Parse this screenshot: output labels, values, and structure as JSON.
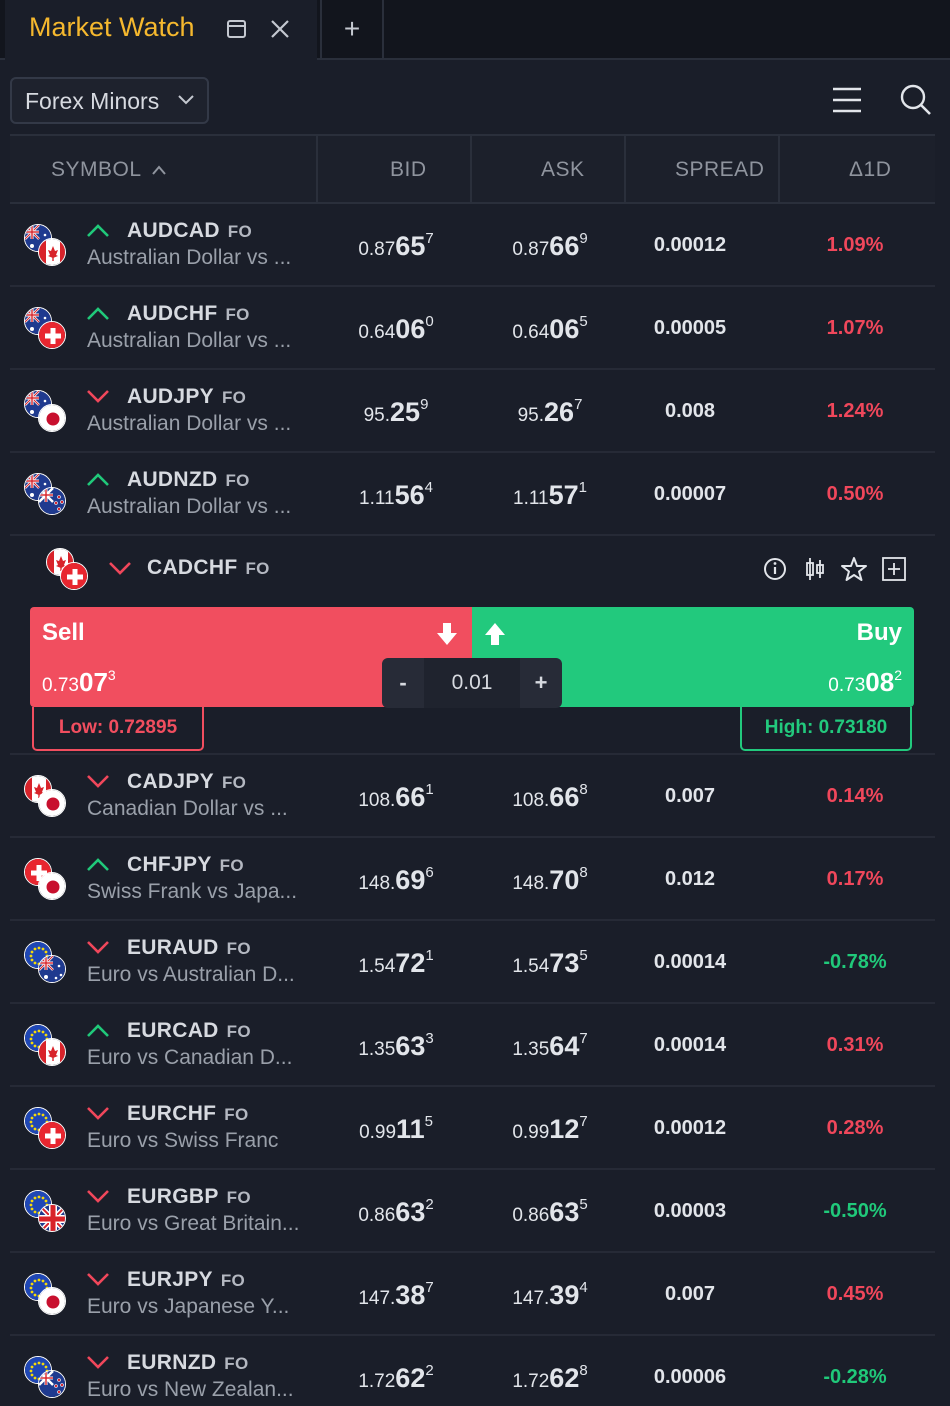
{
  "tab": {
    "title": "Market Watch",
    "add_label": "+"
  },
  "toolbar": {
    "list_name": "Forex Minors"
  },
  "columns": {
    "symbol": "SYMBOL",
    "bid": "BID",
    "ask": "ASK",
    "spread": "SPREAD",
    "change": "Δ1D"
  },
  "colors": {
    "accent": "#f5b82e",
    "sell": "#f14e5f",
    "buy": "#22c97d",
    "negative": "#f0475b",
    "positive": "#20c97a"
  },
  "rows_top": [
    {
      "symbol": "AUDCAD",
      "tag": "FO",
      "desc": "Australian Dollar vs ...",
      "trend": "up",
      "flags": [
        "au",
        "ca"
      ],
      "bid": {
        "pre": "0.87",
        "big": "65",
        "sup": "7"
      },
      "ask": {
        "pre": "0.87",
        "big": "66",
        "sup": "9"
      },
      "spread": "0.00012",
      "change": "1.09%",
      "change_sign": "neg"
    },
    {
      "symbol": "AUDCHF",
      "tag": "FO",
      "desc": "Australian Dollar vs ...",
      "trend": "up",
      "flags": [
        "au",
        "ch"
      ],
      "bid": {
        "pre": "0.64",
        "big": "06",
        "sup": "0"
      },
      "ask": {
        "pre": "0.64",
        "big": "06",
        "sup": "5"
      },
      "spread": "0.00005",
      "change": "1.07%",
      "change_sign": "neg"
    },
    {
      "symbol": "AUDJPY",
      "tag": "FO",
      "desc": "Australian Dollar vs ...",
      "trend": "down",
      "flags": [
        "au",
        "jp"
      ],
      "bid": {
        "pre": "95.",
        "big": "25",
        "sup": "9"
      },
      "ask": {
        "pre": "95.",
        "big": "26",
        "sup": "7"
      },
      "spread": "0.008",
      "change": "1.24%",
      "change_sign": "neg"
    },
    {
      "symbol": "AUDNZD",
      "tag": "FO",
      "desc": "Australian Dollar vs ...",
      "trend": "up",
      "flags": [
        "au",
        "nz"
      ],
      "bid": {
        "pre": "1.11",
        "big": "56",
        "sup": "4"
      },
      "ask": {
        "pre": "1.11",
        "big": "57",
        "sup": "1"
      },
      "spread": "0.00007",
      "change": "0.50%",
      "change_sign": "neg"
    }
  ],
  "expanded": {
    "symbol": "CADCHF",
    "tag": "FO",
    "trend": "down",
    "flags": [
      "ca",
      "ch"
    ],
    "sell_label": "Sell",
    "buy_label": "Buy",
    "sell_price": {
      "pre": "0.73",
      "big": "07",
      "sup": "3"
    },
    "buy_price": {
      "pre": "0.73",
      "big": "08",
      "sup": "2"
    },
    "quantity": "0.01",
    "qty_minus": "-",
    "qty_plus": "+",
    "low": "Low: 0.72895",
    "high": "High: 0.73180",
    "icons": [
      "info-icon",
      "candlestick-chart-icon",
      "star-icon",
      "add-box-icon"
    ]
  },
  "rows_bottom": [
    {
      "symbol": "CADJPY",
      "tag": "FO",
      "desc": "Canadian Dollar vs ...",
      "trend": "down",
      "flags": [
        "ca",
        "jp"
      ],
      "bid": {
        "pre": "108.",
        "big": "66",
        "sup": "1"
      },
      "ask": {
        "pre": "108.",
        "big": "66",
        "sup": "8"
      },
      "spread": "0.007",
      "change": "0.14%",
      "change_sign": "neg"
    },
    {
      "symbol": "CHFJPY",
      "tag": "FO",
      "desc": "Swiss Frank vs Japa...",
      "trend": "up",
      "flags": [
        "ch",
        "jp"
      ],
      "bid": {
        "pre": "148.",
        "big": "69",
        "sup": "6"
      },
      "ask": {
        "pre": "148.",
        "big": "70",
        "sup": "8"
      },
      "spread": "0.012",
      "change": "0.17%",
      "change_sign": "neg"
    },
    {
      "symbol": "EURAUD",
      "tag": "FO",
      "desc": "Euro vs Australian D...",
      "trend": "down",
      "flags": [
        "eu",
        "au"
      ],
      "bid": {
        "pre": "1.54",
        "big": "72",
        "sup": "1"
      },
      "ask": {
        "pre": "1.54",
        "big": "73",
        "sup": "5"
      },
      "spread": "0.00014",
      "change": "-0.78%",
      "change_sign": "pos"
    },
    {
      "symbol": "EURCAD",
      "tag": "FO",
      "desc": "Euro vs Canadian D...",
      "trend": "up",
      "flags": [
        "eu",
        "ca"
      ],
      "bid": {
        "pre": "1.35",
        "big": "63",
        "sup": "3"
      },
      "ask": {
        "pre": "1.35",
        "big": "64",
        "sup": "7"
      },
      "spread": "0.00014",
      "change": "0.31%",
      "change_sign": "neg"
    },
    {
      "symbol": "EURCHF",
      "tag": "FO",
      "desc": "Euro vs Swiss Franc",
      "trend": "down",
      "flags": [
        "eu",
        "ch"
      ],
      "bid": {
        "pre": "0.99",
        "big": "11",
        "sup": "5"
      },
      "ask": {
        "pre": "0.99",
        "big": "12",
        "sup": "7"
      },
      "spread": "0.00012",
      "change": "0.28%",
      "change_sign": "neg"
    },
    {
      "symbol": "EURGBP",
      "tag": "FO",
      "desc": "Euro vs Great Britain...",
      "trend": "down",
      "flags": [
        "eu",
        "gb"
      ],
      "bid": {
        "pre": "0.86",
        "big": "63",
        "sup": "2"
      },
      "ask": {
        "pre": "0.86",
        "big": "63",
        "sup": "5"
      },
      "spread": "0.00003",
      "change": "-0.50%",
      "change_sign": "pos"
    },
    {
      "symbol": "EURJPY",
      "tag": "FO",
      "desc": "Euro vs Japanese Y...",
      "trend": "down",
      "flags": [
        "eu",
        "jp"
      ],
      "bid": {
        "pre": "147.",
        "big": "38",
        "sup": "7"
      },
      "ask": {
        "pre": "147.",
        "big": "39",
        "sup": "4"
      },
      "spread": "0.007",
      "change": "0.45%",
      "change_sign": "neg"
    },
    {
      "symbol": "EURNZD",
      "tag": "FO",
      "desc": "Euro vs New Zealan...",
      "trend": "down",
      "flags": [
        "eu",
        "nz"
      ],
      "bid": {
        "pre": "1.72",
        "big": "62",
        "sup": "2"
      },
      "ask": {
        "pre": "1.72",
        "big": "62",
        "sup": "8"
      },
      "spread": "0.00006",
      "change": "-0.28%",
      "change_sign": "pos"
    }
  ]
}
